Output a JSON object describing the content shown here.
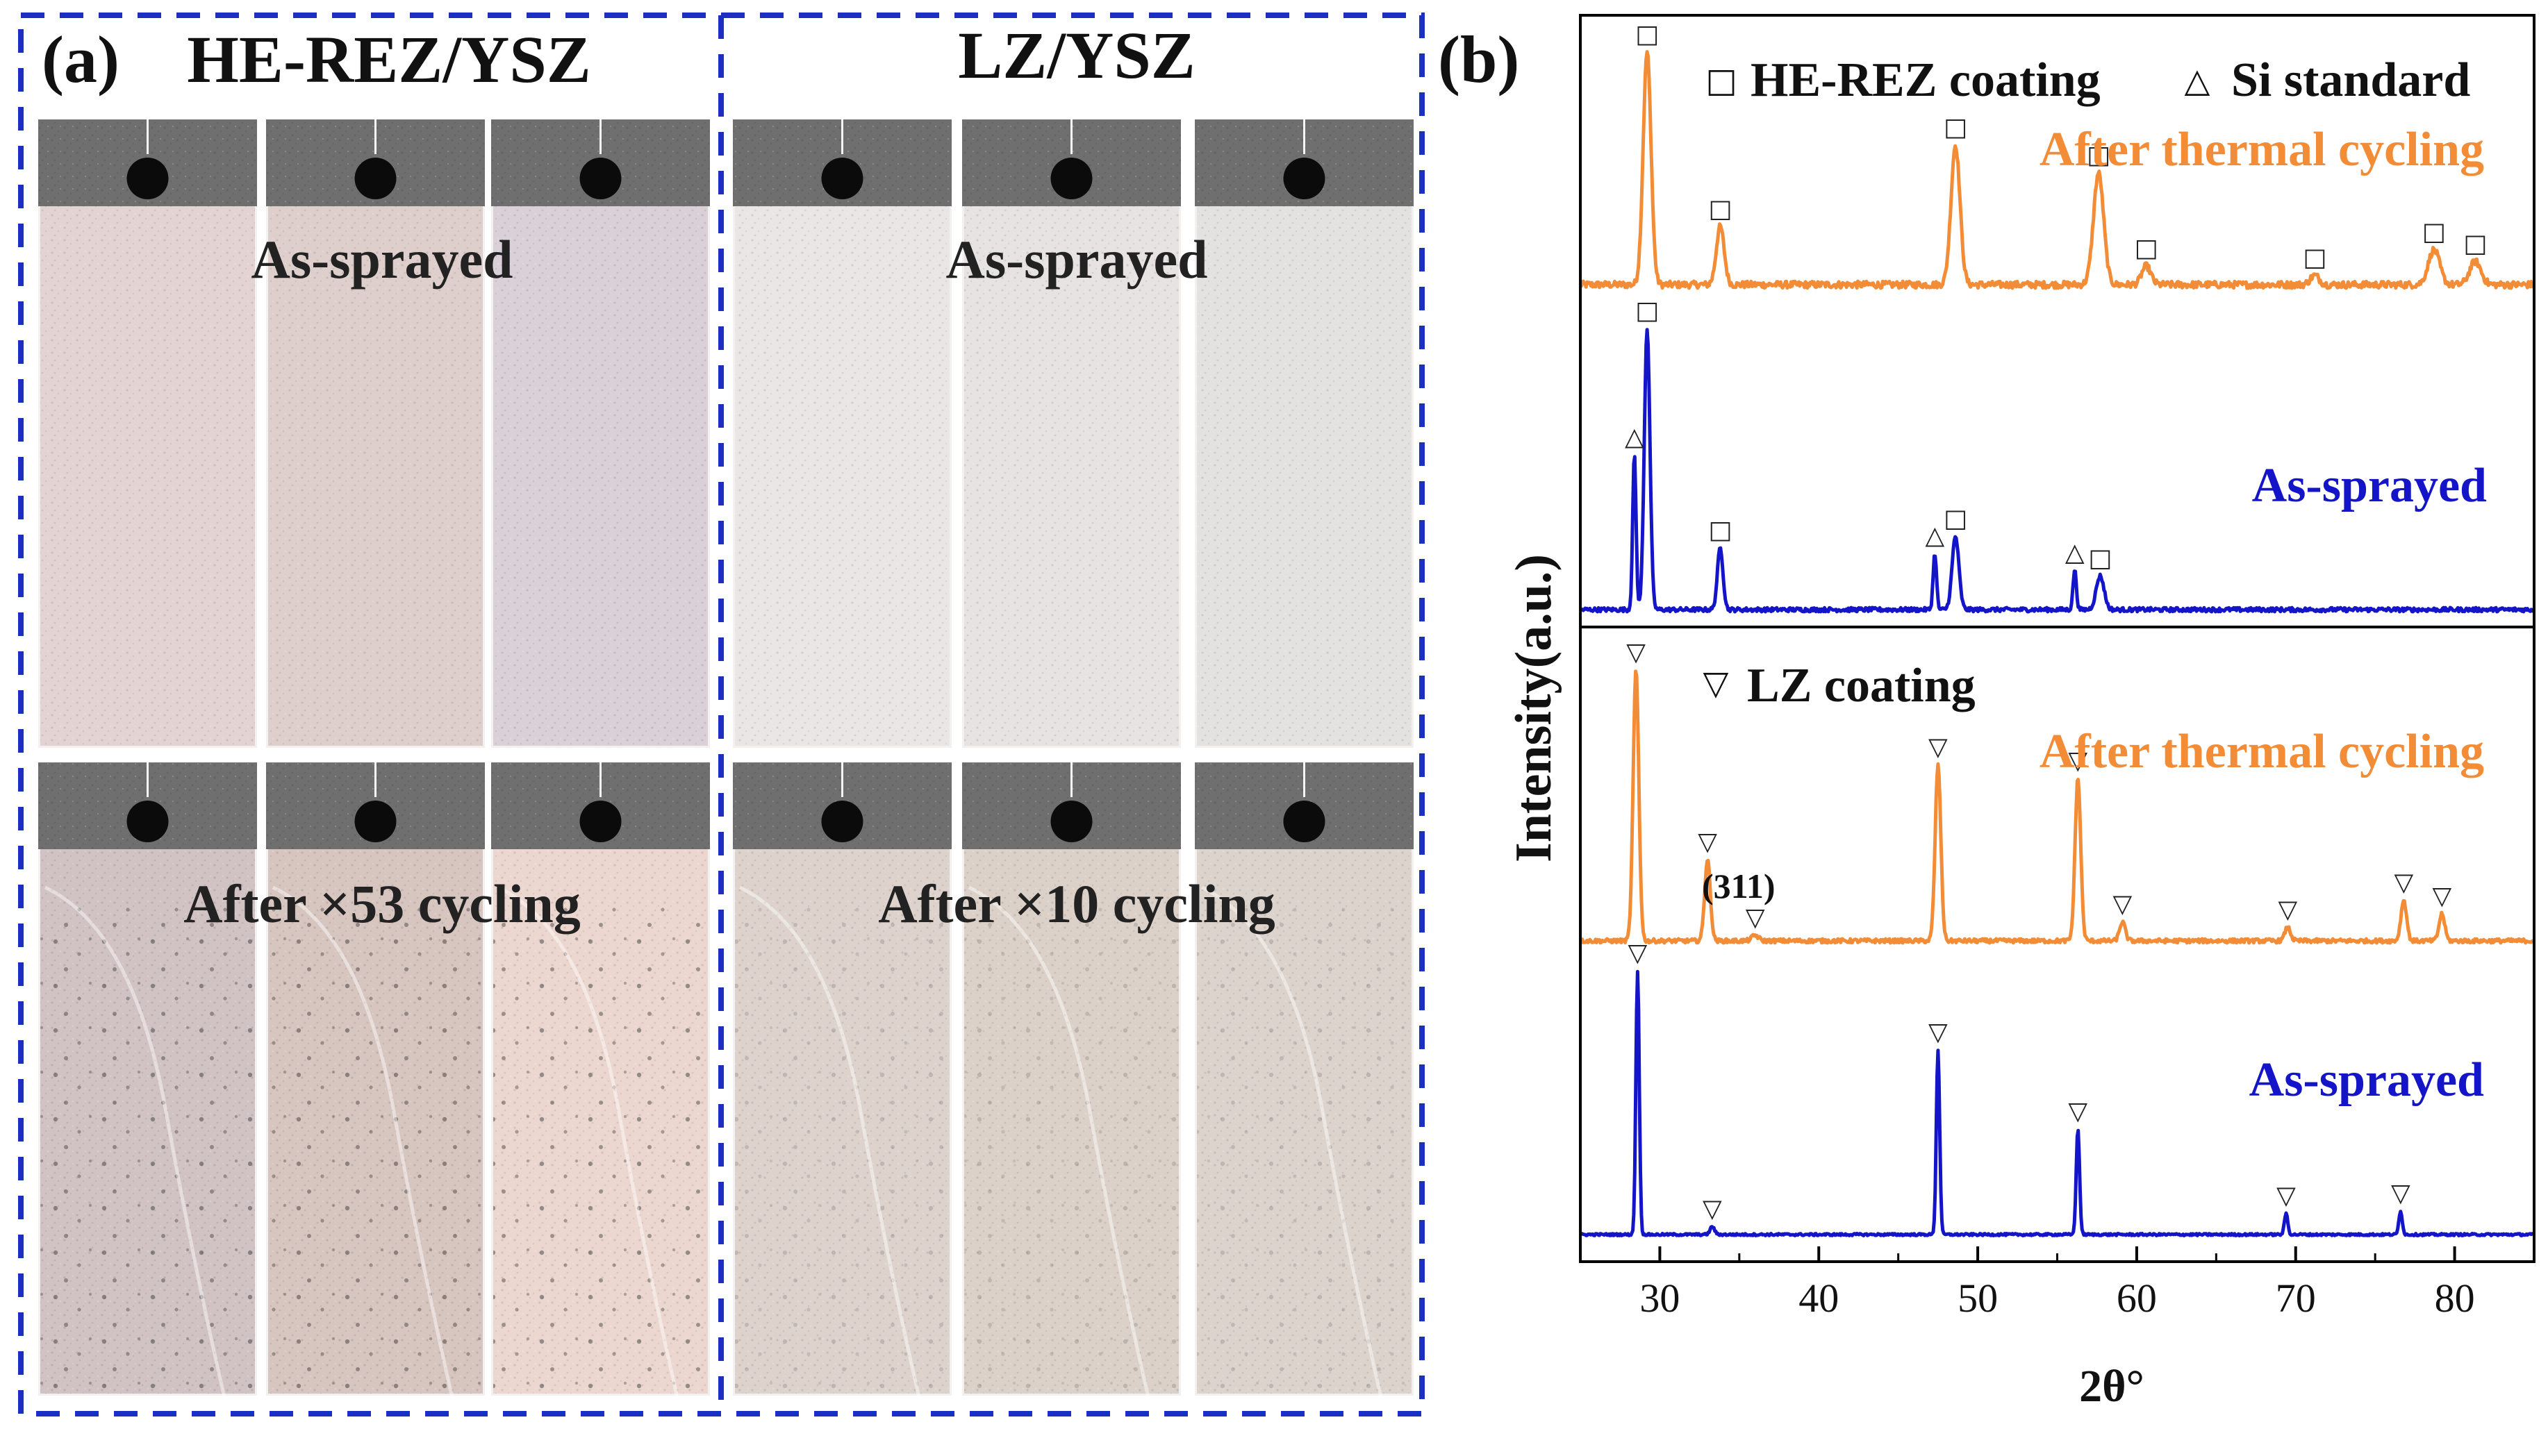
{
  "panel_a": {
    "label": "(a)",
    "groups": [
      {
        "title": "HE-REZ/YSZ",
        "top_caption": "As-sprayed",
        "bottom_caption": "After ×53 cycling"
      },
      {
        "title": "LZ/YSZ",
        "top_caption": "As-sprayed",
        "bottom_caption": "After ×10 cycling"
      }
    ],
    "colors": {
      "frame": "#1a2fc4",
      "herez_top": [
        "#e4d3d3",
        "#decfcd",
        "#d9d0d8"
      ],
      "herez_bottom": [
        "#d1c3c4",
        "#d7c5bf",
        "#ecd7d0"
      ],
      "lz_top": [
        "#e9e6e5",
        "#e6e3e2",
        "#e4e1e1"
      ],
      "lz_bottom": [
        "#ddd3cc",
        "#dcd1c9",
        "#dcd3cc"
      ],
      "holder": "#6f6f6f"
    }
  },
  "panel_b": {
    "label": "(b)"
  },
  "chart_data": {
    "type": "line",
    "xlabel": "2θ°",
    "ylabel": "Intensity(a.u.)",
    "xlim": [
      25,
      85
    ],
    "xticks": [
      30,
      40,
      50,
      60,
      70,
      80
    ],
    "colors": {
      "after": "#f28c36",
      "as_sprayed": "#1414c8",
      "axis": "#000000"
    },
    "top_subplot": {
      "legend": [
        {
          "marker": "□",
          "label": "HE-REZ coating"
        },
        {
          "marker": "△",
          "label": "Si standard"
        }
      ],
      "series": [
        {
          "name": "After thermal cycling",
          "color": "orange",
          "baseline": 1.0,
          "peaks": [
            {
              "x": 29.2,
              "h": 1.0,
              "w": 0.35,
              "marker": "□"
            },
            {
              "x": 33.8,
              "h": 0.25,
              "w": 0.35,
              "marker": "□"
            },
            {
              "x": 48.6,
              "h": 0.6,
              "w": 0.4,
              "marker": "□"
            },
            {
              "x": 57.6,
              "h": 0.48,
              "w": 0.45,
              "marker": "□"
            },
            {
              "x": 60.6,
              "h": 0.08,
              "w": 0.4,
              "marker": "□"
            },
            {
              "x": 71.2,
              "h": 0.04,
              "w": 0.4,
              "marker": "□"
            },
            {
              "x": 78.7,
              "h": 0.15,
              "w": 0.5,
              "marker": "□"
            },
            {
              "x": 81.3,
              "h": 0.1,
              "w": 0.5,
              "marker": "□"
            }
          ]
        },
        {
          "name": "As-sprayed",
          "color": "blue",
          "baseline": 0.0,
          "peaks": [
            {
              "x": 28.4,
              "h": 0.55,
              "w": 0.15,
              "marker": "△"
            },
            {
              "x": 29.2,
              "h": 1.0,
              "w": 0.25,
              "marker": "□"
            },
            {
              "x": 33.8,
              "h": 0.22,
              "w": 0.25,
              "marker": "□"
            },
            {
              "x": 47.3,
              "h": 0.2,
              "w": 0.15,
              "marker": "△"
            },
            {
              "x": 48.6,
              "h": 0.26,
              "w": 0.3,
              "marker": "□"
            },
            {
              "x": 56.1,
              "h": 0.14,
              "w": 0.15,
              "marker": "△"
            },
            {
              "x": 57.7,
              "h": 0.12,
              "w": 0.35,
              "marker": "□"
            }
          ]
        }
      ]
    },
    "bottom_subplot": {
      "legend": [
        {
          "marker": "▽",
          "label": "LZ coating"
        }
      ],
      "annotation": "(311)",
      "series": [
        {
          "name": "After thermal cycling",
          "color": "orange",
          "baseline": 1.0,
          "peaks": [
            {
              "x": 28.5,
              "h": 1.0,
              "w": 0.25,
              "marker": "▽"
            },
            {
              "x": 33.0,
              "h": 0.3,
              "w": 0.25,
              "marker": "▽"
            },
            {
              "x": 36.0,
              "h": 0.02,
              "w": 0.3,
              "marker": "▽"
            },
            {
              "x": 47.5,
              "h": 0.65,
              "w": 0.25,
              "marker": "▽"
            },
            {
              "x": 56.3,
              "h": 0.6,
              "w": 0.25,
              "marker": "▽"
            },
            {
              "x": 59.1,
              "h": 0.07,
              "w": 0.25,
              "marker": "▽"
            },
            {
              "x": 69.5,
              "h": 0.05,
              "w": 0.25,
              "marker": "▽"
            },
            {
              "x": 76.8,
              "h": 0.15,
              "w": 0.25,
              "marker": "▽"
            },
            {
              "x": 79.2,
              "h": 0.1,
              "w": 0.25,
              "marker": "▽"
            }
          ]
        },
        {
          "name": "As-sprayed",
          "color": "blue",
          "baseline": 0.0,
          "peaks": [
            {
              "x": 28.6,
              "h": 1.0,
              "w": 0.15,
              "marker": "▽"
            },
            {
              "x": 33.3,
              "h": 0.03,
              "w": 0.2,
              "marker": "▽"
            },
            {
              "x": 47.5,
              "h": 0.7,
              "w": 0.15,
              "marker": "▽"
            },
            {
              "x": 56.3,
              "h": 0.4,
              "w": 0.15,
              "marker": "▽"
            },
            {
              "x": 69.4,
              "h": 0.08,
              "w": 0.15,
              "marker": "▽"
            },
            {
              "x": 76.6,
              "h": 0.09,
              "w": 0.15,
              "marker": "▽"
            }
          ]
        }
      ]
    }
  }
}
